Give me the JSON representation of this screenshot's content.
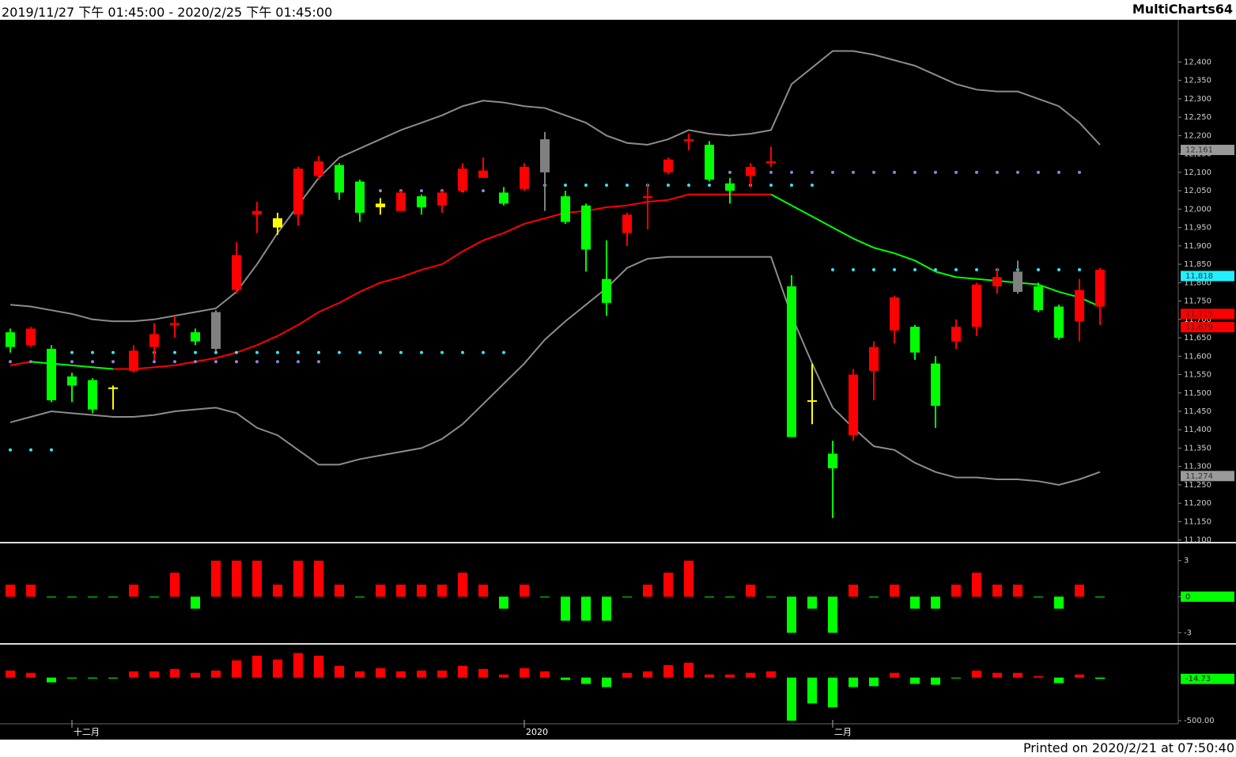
{
  "header": {
    "range_text": "2019/11/27 下午 01:45:00 - 2020/2/25 下午 01:45:00",
    "app_name": "MultiCharts64"
  },
  "footer": {
    "printed": "Printed on 2020/2/21 at 07:50:40"
  },
  "chart_data": [
    {
      "type": "candlestick",
      "categories": [
        null,
        null,
        null,
        "十二月",
        null,
        null,
        null,
        null,
        null,
        null,
        null,
        null,
        null,
        null,
        null,
        null,
        null,
        null,
        null,
        null,
        null,
        null,
        null,
        null,
        null,
        "2020",
        null,
        null,
        null,
        null,
        null,
        null,
        null,
        null,
        null,
        null,
        null,
        null,
        null,
        null,
        "二月",
        null,
        null,
        null,
        null,
        null,
        null,
        null,
        null,
        null,
        null,
        null,
        null,
        null
      ],
      "open": [
        11665,
        11630,
        11620,
        11545,
        11535,
        11515,
        11560,
        11625,
        11685,
        11665,
        11720,
        11780,
        11985,
        11975,
        11985,
        12090,
        12120,
        12075,
        12015,
        11995,
        12035,
        12010,
        12050,
        12085,
        12045,
        12055,
        12190,
        12035,
        12010,
        11810,
        11935,
        12030,
        12100,
        12185,
        12175,
        12070,
        12090,
        12125,
        11790,
        11480,
        11335,
        11385,
        11560,
        11670,
        11680,
        11580,
        11640,
        11680,
        11790,
        11830,
        11790,
        11735,
        11695,
        11735
      ],
      "high": [
        11675,
        11680,
        11630,
        11555,
        11540,
        11520,
        11630,
        11690,
        11710,
        11675,
        11725,
        11910,
        12020,
        11990,
        12115,
        12145,
        12125,
        12080,
        12030,
        12050,
        12040,
        12050,
        12125,
        12140,
        12060,
        12125,
        12210,
        12050,
        12015,
        11915,
        11990,
        12070,
        12140,
        12205,
        12185,
        12085,
        12125,
        12170,
        11820,
        11580,
        11370,
        11565,
        11640,
        11765,
        11685,
        11600,
        11700,
        11800,
        11840,
        11860,
        11800,
        11740,
        11810,
        11840
      ],
      "low": [
        11610,
        11625,
        11475,
        11475,
        11445,
        11455,
        11555,
        11590,
        11650,
        11630,
        11615,
        11770,
        11935,
        11930,
        11955,
        12080,
        12025,
        11965,
        11985,
        11995,
        11985,
        11990,
        12045,
        12085,
        12010,
        12050,
        11995,
        11960,
        11830,
        11710,
        11900,
        11945,
        12095,
        12160,
        12075,
        12015,
        12060,
        12115,
        11380,
        11415,
        11160,
        11370,
        11480,
        11635,
        11590,
        11405,
        11620,
        11655,
        11770,
        11770,
        11720,
        11645,
        11640,
        11685
      ],
      "close": [
        11625,
        11675,
        11480,
        11520,
        11455,
        11515,
        11615,
        11660,
        11690,
        11640,
        11620,
        11875,
        11995,
        11950,
        12110,
        12130,
        12045,
        11990,
        12005,
        12045,
        12005,
        12045,
        12110,
        12105,
        12015,
        12115,
        12100,
        11965,
        11890,
        11745,
        11985,
        12035,
        12135,
        12190,
        12080,
        12050,
        12115,
        12130,
        11380,
        11480,
        11295,
        11550,
        11625,
        11760,
        11610,
        11465,
        11680,
        11795,
        11815,
        11775,
        11725,
        11650,
        11780,
        11835
      ],
      "colors": [
        "#00ff00",
        "#ff0000",
        "#00ff00",
        "#00ff00",
        "#00ff00",
        "#ffff00",
        "#ff0000",
        "#ff0000",
        "#ff0000",
        "#00ff00",
        "#808080",
        "#ff0000",
        "#ff0000",
        "#ffff00",
        "#ff0000",
        "#ff0000",
        "#00ff00",
        "#00ff00",
        "#ffff00",
        "#ff0000",
        "#00ff00",
        "#ff0000",
        "#ff0000",
        "#ff0000",
        "#00ff00",
        "#ff0000",
        "#808080",
        "#00ff00",
        "#00ff00",
        "#00ff00",
        "#ff0000",
        "#ff0000",
        "#ff0000",
        "#ff0000",
        "#00ff00",
        "#00ff00",
        "#ff0000",
        "#ff0000",
        "#00ff00",
        "#ffff00",
        "#00ff00",
        "#ff0000",
        "#ff0000",
        "#ff0000",
        "#00ff00",
        "#00ff00",
        "#ff0000",
        "#ff0000",
        "#ff0000",
        "#808080",
        "#00ff00",
        "#00ff00",
        "#ff0000",
        "#ff0000"
      ],
      "upper": [
        11740,
        11735,
        11725,
        11715,
        11700,
        11695,
        11695,
        11700,
        11710,
        11720,
        11730,
        11775,
        11850,
        11935,
        12010,
        12085,
        12140,
        12165,
        12190,
        12215,
        12235,
        12255,
        12280,
        12295,
        12290,
        12280,
        12275,
        12255,
        12235,
        12200,
        12180,
        12175,
        12190,
        12215,
        12205,
        12200,
        12205,
        12215,
        12340,
        12385,
        12430,
        12430,
        12420,
        12405,
        12390,
        12365,
        12340,
        12325,
        12320,
        12320,
        12300,
        12280,
        12235,
        12175
      ],
      "middle": [
        11575,
        11585,
        11580,
        11575,
        11570,
        11565,
        11565,
        11570,
        11575,
        11585,
        11595,
        11610,
        11630,
        11655,
        11685,
        11720,
        11745,
        11775,
        11800,
        11815,
        11835,
        11850,
        11885,
        11915,
        11935,
        11960,
        11975,
        11990,
        11995,
        12005,
        12010,
        12020,
        12025,
        12040,
        12040,
        12040,
        12040,
        12040,
        12010,
        11980,
        11950,
        11920,
        11895,
        11880,
        11860,
        11830,
        11815,
        11810,
        11805,
        11800,
        11795,
        11775,
        11760,
        11735
      ],
      "lower": [
        11420,
        11435,
        11450,
        11445,
        11440,
        11435,
        11435,
        11440,
        11450,
        11455,
        11460,
        11445,
        11405,
        11385,
        11345,
        11305,
        11305,
        11320,
        11330,
        11340,
        11350,
        11375,
        11415,
        11470,
        11525,
        11580,
        11645,
        11695,
        11740,
        11785,
        11840,
        11865,
        11870,
        11870,
        11870,
        11870,
        11870,
        11870,
        11710,
        11580,
        11460,
        11405,
        11355,
        11345,
        11310,
        11285,
        11270,
        11270,
        11265,
        11265,
        11260,
        11250,
        11265,
        11285
      ],
      "band_color": "#8c8c8c",
      "rise_color": "#ff0000",
      "fall_color": "#00ff00",
      "dots_cyan": [
        11345,
        11345,
        11345,
        11610,
        11610,
        11610,
        11610,
        11610,
        11610,
        11610,
        11610,
        11610,
        11610,
        11610,
        11610,
        11610,
        11610,
        11610,
        11610,
        11610,
        11610,
        11610,
        11610,
        11610,
        11610,
        12065,
        12065,
        12065,
        12065,
        12065,
        12065,
        12065,
        12065,
        12065,
        12065,
        12065,
        12065,
        12065,
        12065,
        12065,
        11835,
        11835,
        11835,
        11835,
        11835,
        11835,
        11835,
        11835,
        11835,
        11835,
        11835,
        11835,
        11835,
        null
      ],
      "dots_purple": [
        11585,
        11585,
        11585,
        11585,
        11585,
        11585,
        11585,
        11585,
        11585,
        11585,
        11585,
        11585,
        11585,
        11585,
        11585,
        11585,
        null,
        12050,
        12050,
        12050,
        12050,
        12050,
        12050,
        12050,
        null,
        null,
        null,
        null,
        null,
        null,
        null,
        null,
        null,
        null,
        null,
        12100,
        12100,
        12100,
        12100,
        12100,
        12100,
        12100,
        12100,
        12100,
        12100,
        12100,
        12100,
        12100,
        12100,
        12100,
        12100,
        12100,
        12100,
        null
      ],
      "cyan_color": "#33e6f0",
      "purple_color": "#8a86d8",
      "ylim": [
        11095,
        12515
      ],
      "yticks": [
        {
          "value": 11100,
          "label": "11,100"
        },
        {
          "value": 11150,
          "label": "11,150"
        },
        {
          "value": 11200,
          "label": "11,200"
        },
        {
          "value": 11250,
          "label": "11,250"
        },
        {
          "value": 11300,
          "label": "11,300"
        },
        {
          "value": 11350,
          "label": "11,350"
        },
        {
          "value": 11400,
          "label": "11,400"
        },
        {
          "value": 11450,
          "label": "11,450"
        },
        {
          "value": 11500,
          "label": "11,500"
        },
        {
          "value": 11550,
          "label": "11,550"
        },
        {
          "value": 11600,
          "label": "11,600"
        },
        {
          "value": 11650,
          "label": "11,650"
        },
        {
          "value": 11700,
          "label": "11,700"
        },
        {
          "value": 11750,
          "label": "11,750"
        },
        {
          "value": 11800,
          "label": "11,800"
        },
        {
          "value": 11850,
          "label": "11,850"
        },
        {
          "value": 11900,
          "label": "11,900"
        },
        {
          "value": 11950,
          "label": "11,950"
        },
        {
          "value": 12000,
          "label": "12,000"
        },
        {
          "value": 12050,
          "label": "12,050"
        },
        {
          "value": 12100,
          "label": "12,100"
        },
        {
          "value": 12150,
          "label": "12,150"
        },
        {
          "value": 12200,
          "label": "12,200"
        },
        {
          "value": 12250,
          "label": "12,250"
        },
        {
          "value": 12300,
          "label": "12,300"
        },
        {
          "value": 12350,
          "label": "12,350"
        },
        {
          "value": 12400,
          "label": "12,400"
        }
      ],
      "markers": [
        {
          "value": 12161,
          "label": "12,161",
          "color": "#9a9a9a"
        },
        {
          "value": 11818,
          "label": "11,818",
          "color": "#22f0ff"
        },
        {
          "value": 11715,
          "label": "11,715",
          "color": "#ff0000"
        },
        {
          "value": 11679,
          "label": "11,679",
          "color": "#ff0000"
        },
        {
          "value": 11274,
          "label": "11,274",
          "color": "#9a9a9a"
        }
      ]
    },
    {
      "type": "bar",
      "values": [
        1,
        1,
        0,
        0,
        0,
        0,
        1,
        0,
        2,
        -1,
        3,
        3,
        3,
        1,
        3,
        3,
        1,
        0,
        1,
        1,
        1,
        1,
        2,
        1,
        -1,
        1,
        0,
        -2,
        -2,
        -2,
        0,
        1,
        2,
        3,
        0,
        0,
        1,
        0,
        -3,
        -1,
        -3,
        1,
        0,
        1,
        -1,
        -1,
        1,
        2,
        1,
        1,
        0,
        -1,
        1,
        0
      ],
      "pos_color": "#ff0000",
      "neg_color": "#00ff00",
      "ylim": [
        -3.8,
        4.3
      ],
      "yticks": [
        3,
        0,
        -3
      ],
      "last": 0
    },
    {
      "type": "bar",
      "values": [
        82,
        55,
        -55,
        -10,
        -10,
        -10,
        73,
        73,
        100,
        55,
        82,
        200,
        255,
        210,
        285,
        255,
        136,
        73,
        110,
        73,
        82,
        82,
        136,
        100,
        36,
        110,
        73,
        -27,
        -73,
        -110,
        55,
        73,
        145,
        173,
        36,
        36,
        55,
        73,
        -500,
        -300,
        -345,
        -110,
        -100,
        55,
        -73,
        -82,
        -5,
        82,
        55,
        55,
        18,
        -64,
        36,
        -14.73
      ],
      "pos_color": "#ff0000",
      "neg_color": "#00ff00",
      "ylim": [
        -527,
        364
      ],
      "yticks": [
        {
          "value": -500,
          "label": "-500.00"
        }
      ],
      "last": -14.73
    }
  ]
}
